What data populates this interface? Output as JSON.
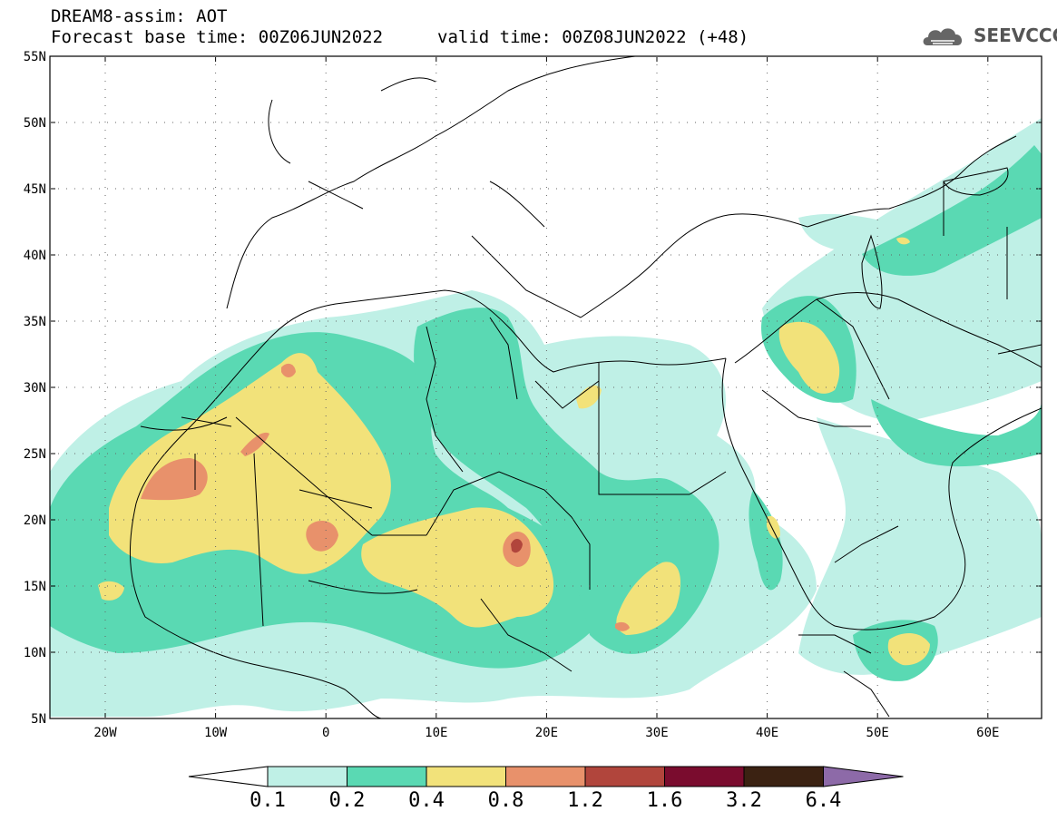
{
  "header": {
    "title": "DREAM8-assim: AOT",
    "base_time": "Forecast base time: 00Z06JUN2022",
    "valid_time": "valid time: 00Z08JUN2022 (+48)"
  },
  "logo": {
    "text": "SEEVCCC",
    "icon": "cloud-icon"
  },
  "axes": {
    "lat_labels": [
      "55N",
      "50N",
      "45N",
      "40N",
      "35N",
      "30N",
      "25N",
      "20N",
      "15N",
      "10N",
      "5N"
    ],
    "lon_labels": [
      "20W",
      "10W",
      "0",
      "10E",
      "20E",
      "30E",
      "40E",
      "50E",
      "60E"
    ]
  },
  "colorbar": {
    "labels": [
      "0.1",
      "0.2",
      "0.4",
      "0.8",
      "1.2",
      "1.6",
      "3.2",
      "6.4"
    ],
    "colors": [
      "#ffffff",
      "#bff0e6",
      "#5ad9b3",
      "#f2e27a",
      "#e8916b",
      "#b1453c",
      "#7a0c2e",
      "#3b2212",
      "#8d6aa8"
    ]
  },
  "colors": {
    "aot_0_1_0_2": "#bff0e6",
    "aot_0_2_0_4": "#5ad9b3",
    "aot_0_4_0_8": "#f2e27a",
    "aot_0_8_1_2": "#e8916b",
    "aot_1_2_1_6": "#b1453c",
    "aot_1_6_3_2": "#7a0c2e"
  }
}
